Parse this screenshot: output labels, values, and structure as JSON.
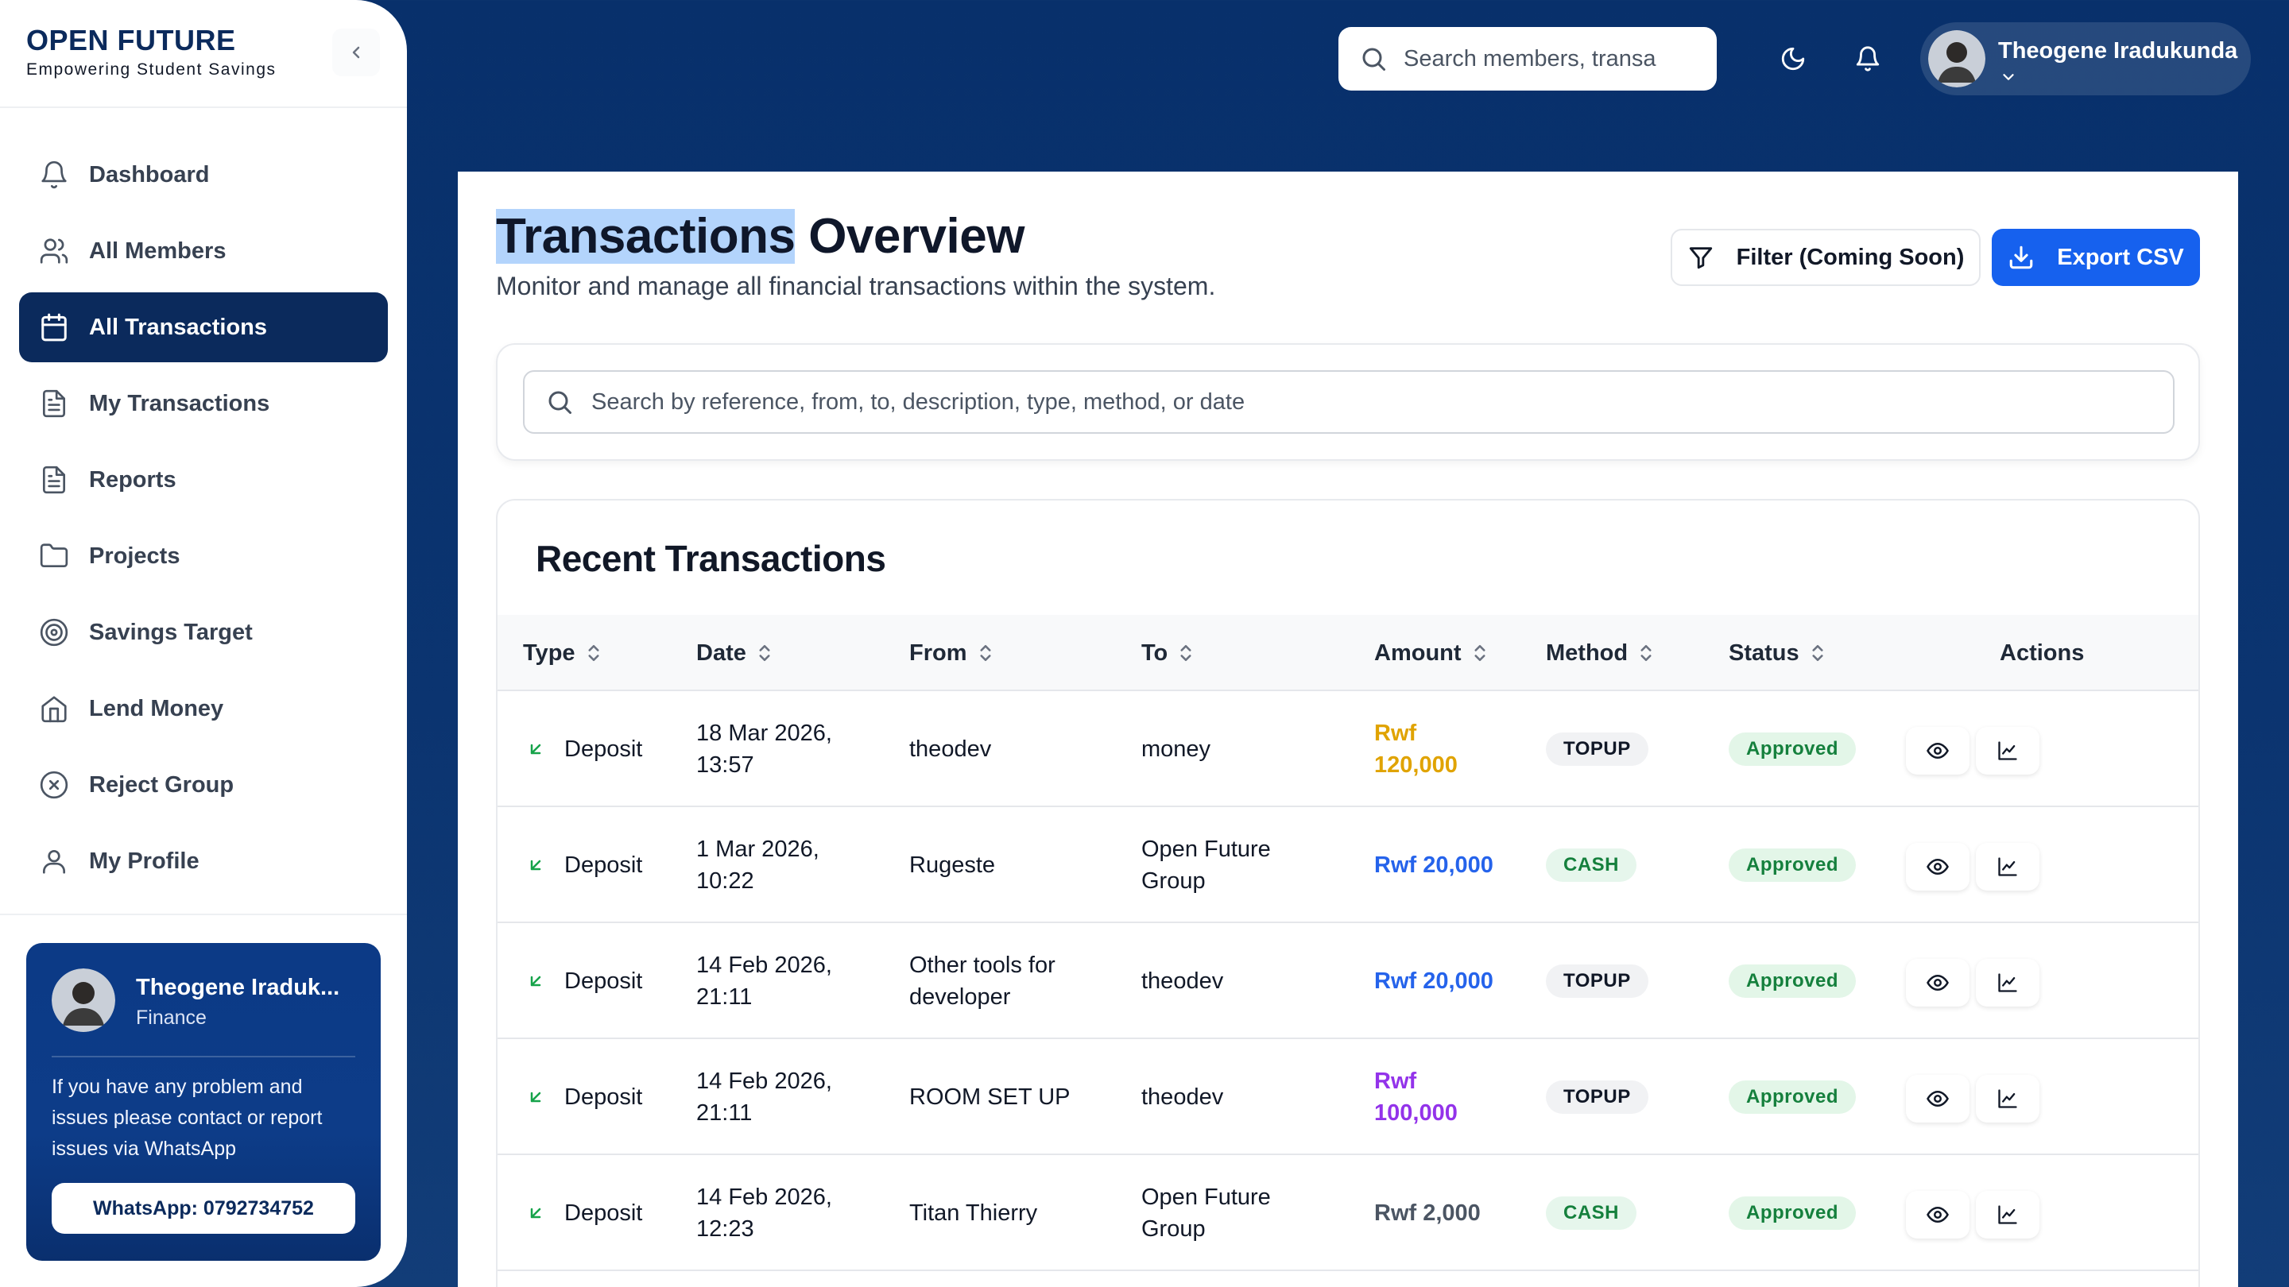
{
  "brand": {
    "title": "OPEN FUTURE",
    "subtitle": "Empowering Student Savings"
  },
  "sidebar": {
    "items": [
      {
        "label": "Dashboard",
        "icon": "bell-icon",
        "active": false
      },
      {
        "label": "All Members",
        "icon": "users-icon",
        "active": false
      },
      {
        "label": "All Transactions",
        "icon": "calendar-icon",
        "active": true
      },
      {
        "label": "My Transactions",
        "icon": "document-icon",
        "active": false
      },
      {
        "label": "Reports",
        "icon": "document-icon",
        "active": false
      },
      {
        "label": "Projects",
        "icon": "folder-icon",
        "active": false
      },
      {
        "label": "Savings Target",
        "icon": "target-icon",
        "active": false
      },
      {
        "label": "Lend Money",
        "icon": "home-icon",
        "active": false
      },
      {
        "label": "Reject Group",
        "icon": "x-circle-icon",
        "active": false
      },
      {
        "label": "My Profile",
        "icon": "user-icon",
        "active": false
      }
    ],
    "support": {
      "name": "Theogene Iraduk...",
      "role": "Finance",
      "message": "If you have any problem and issues please contact or report issues via WhatsApp",
      "button": "WhatsApp: 0792734752"
    }
  },
  "topbar": {
    "search_placeholder": "Search members, transa",
    "user_name": "Theogene Iradukunda"
  },
  "page": {
    "title_highlight": "Transactions",
    "title_rest": " Overview",
    "subtitle": "Monitor and manage all financial transactions within the system.",
    "filter_button": "Filter (Coming Soon)",
    "export_button": "Export CSV",
    "search_placeholder": "Search by reference, from, to, description, type, method, or date"
  },
  "table": {
    "title": "Recent Transactions",
    "columns": [
      "Type",
      "Date",
      "From",
      "To",
      "Amount",
      "Method",
      "Status",
      "Actions"
    ],
    "rows": [
      {
        "type": "Deposit",
        "date": "18 Mar 2026, 13:57",
        "from": "theodev",
        "to": "money",
        "amount": "Rwf 120,000",
        "amount_color": "#e0a300",
        "method": "TOPUP",
        "status": "Approved"
      },
      {
        "type": "Deposit",
        "date": "1 Mar 2026, 10:22",
        "from": "Rugeste",
        "to": "Open Future Group",
        "amount": "Rwf 20,000",
        "amount_color": "#2563eb",
        "method": "CASH",
        "status": "Approved"
      },
      {
        "type": "Deposit",
        "date": "14 Feb 2026, 21:11",
        "from": "Other tools for developer",
        "to": "theodev",
        "amount": "Rwf 20,000",
        "amount_color": "#2563eb",
        "method": "TOPUP",
        "status": "Approved"
      },
      {
        "type": "Deposit",
        "date": "14 Feb 2026, 21:11",
        "from": "ROOM SET UP",
        "to": "theodev",
        "amount": "Rwf 100,000",
        "amount_color": "#9333ea",
        "method": "TOPUP",
        "status": "Approved"
      },
      {
        "type": "Deposit",
        "date": "14 Feb 2026, 12:23",
        "from": "Titan Thierry",
        "to": "Open Future Group",
        "amount": "Rwf 2,000",
        "amount_color": "#4b5563",
        "method": "CASH",
        "status": "Approved"
      }
    ]
  },
  "colors": {
    "primary": "#0b2a5c",
    "accent": "#1661ee",
    "success": "#15803d"
  }
}
